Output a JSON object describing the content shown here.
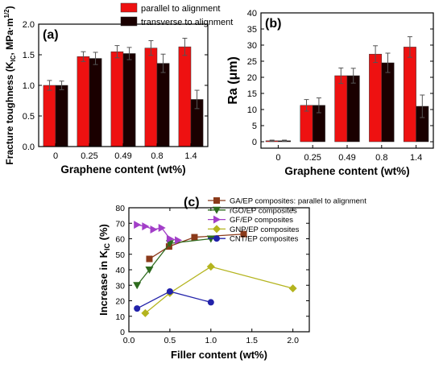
{
  "figure": "composite",
  "chart_data": [
    {
      "panel": "(a)",
      "type": "bar",
      "ylabel": "Fracture toughness (K",
      "ylabel_sub": "IC",
      "ylabel_unit": ", MPa·m",
      "ylabel_sup": "1/2",
      "ylabel_close": ")",
      "xlabel": "Graphene content (wt%)",
      "categories": [
        "0",
        "0.25",
        "0.49",
        "0.8",
        "1.4"
      ],
      "ylim": [
        0.0,
        2.0
      ],
      "yticks": [
        "0.0",
        "0.5",
        "1.0",
        "1.5",
        "2.0"
      ],
      "legend_position": "top-right",
      "colors": [
        "#ee1111",
        "#1a0000"
      ],
      "series": [
        {
          "name": "parallel to alignment",
          "values": [
            1.0,
            1.47,
            1.55,
            1.61,
            1.63
          ],
          "errors": [
            0.08,
            0.08,
            0.1,
            0.12,
            0.14
          ]
        },
        {
          "name": "transverse to alignment",
          "values": [
            1.0,
            1.44,
            1.52,
            1.36,
            0.77
          ],
          "errors": [
            0.07,
            0.1,
            0.1,
            0.15,
            0.15
          ]
        }
      ]
    },
    {
      "panel": "(b)",
      "type": "bar",
      "ylabel": "Ra (μm)",
      "xlabel": "Graphene content (wt%)",
      "categories": [
        "0",
        "0.25",
        "0.49",
        "0.8",
        "1.4"
      ],
      "ylim": [
        -2,
        40
      ],
      "yticks": [
        "0",
        "5",
        "10",
        "15",
        "20",
        "25",
        "30",
        "35",
        "40"
      ],
      "colors": [
        "#ee1111",
        "#1a0000"
      ],
      "series": [
        {
          "values": [
            0.3,
            11.3,
            20.5,
            27.2,
            29.4
          ],
          "errors": [
            0.2,
            1.8,
            2.4,
            2.6,
            3.2
          ]
        },
        {
          "values": [
            0.3,
            11.3,
            20.5,
            24.5,
            11.0
          ],
          "errors": [
            0.2,
            2.3,
            2.3,
            3.0,
            3.5
          ]
        }
      ]
    },
    {
      "panel": "(c)",
      "type": "line",
      "ylabel": "Increase in K",
      "ylabel_sub": "IC",
      "ylabel_unit": " (%)",
      "xlabel": "Filler content (wt%)",
      "xlim": [
        0,
        2.2
      ],
      "ylim": [
        0,
        80
      ],
      "xticks": [
        "0.0",
        "0.5",
        "1.0",
        "1.5",
        "2.0"
      ],
      "yticks": [
        "0",
        "10",
        "20",
        "30",
        "40",
        "50",
        "60",
        "70",
        "80"
      ],
      "legend_position": "top-left",
      "series": [
        {
          "name": "GA/EP composites: parallel to alignment",
          "marker": "square",
          "color": "#8b3a1a",
          "x": [
            0.25,
            0.49,
            0.8,
            1.4
          ],
          "y": [
            47,
            55,
            61,
            63
          ]
        },
        {
          "name": "rGO/EP composites",
          "marker": "triangle-down",
          "color": "#2e6b1e",
          "x": [
            0.1,
            0.25,
            0.5,
            1.0
          ],
          "y": [
            30,
            40,
            57,
            60
          ]
        },
        {
          "name": "GF/EP composites",
          "marker": "triangle-right",
          "color": "#a23ec8",
          "x": [
            0.1,
            0.2,
            0.3,
            0.4,
            0.5,
            0.6
          ],
          "y": [
            69,
            68,
            66,
            67,
            60,
            59
          ]
        },
        {
          "name": "GNP/EP composites",
          "marker": "diamond",
          "color": "#b4b41e",
          "x": [
            0.2,
            0.5,
            1.0,
            2.0
          ],
          "y": [
            12,
            25,
            42,
            28
          ]
        },
        {
          "name": "CNT/EP composites",
          "marker": "circle",
          "color": "#2222aa",
          "x": [
            0.1,
            0.5,
            1.0
          ],
          "y": [
            15,
            26,
            19
          ]
        }
      ]
    }
  ]
}
